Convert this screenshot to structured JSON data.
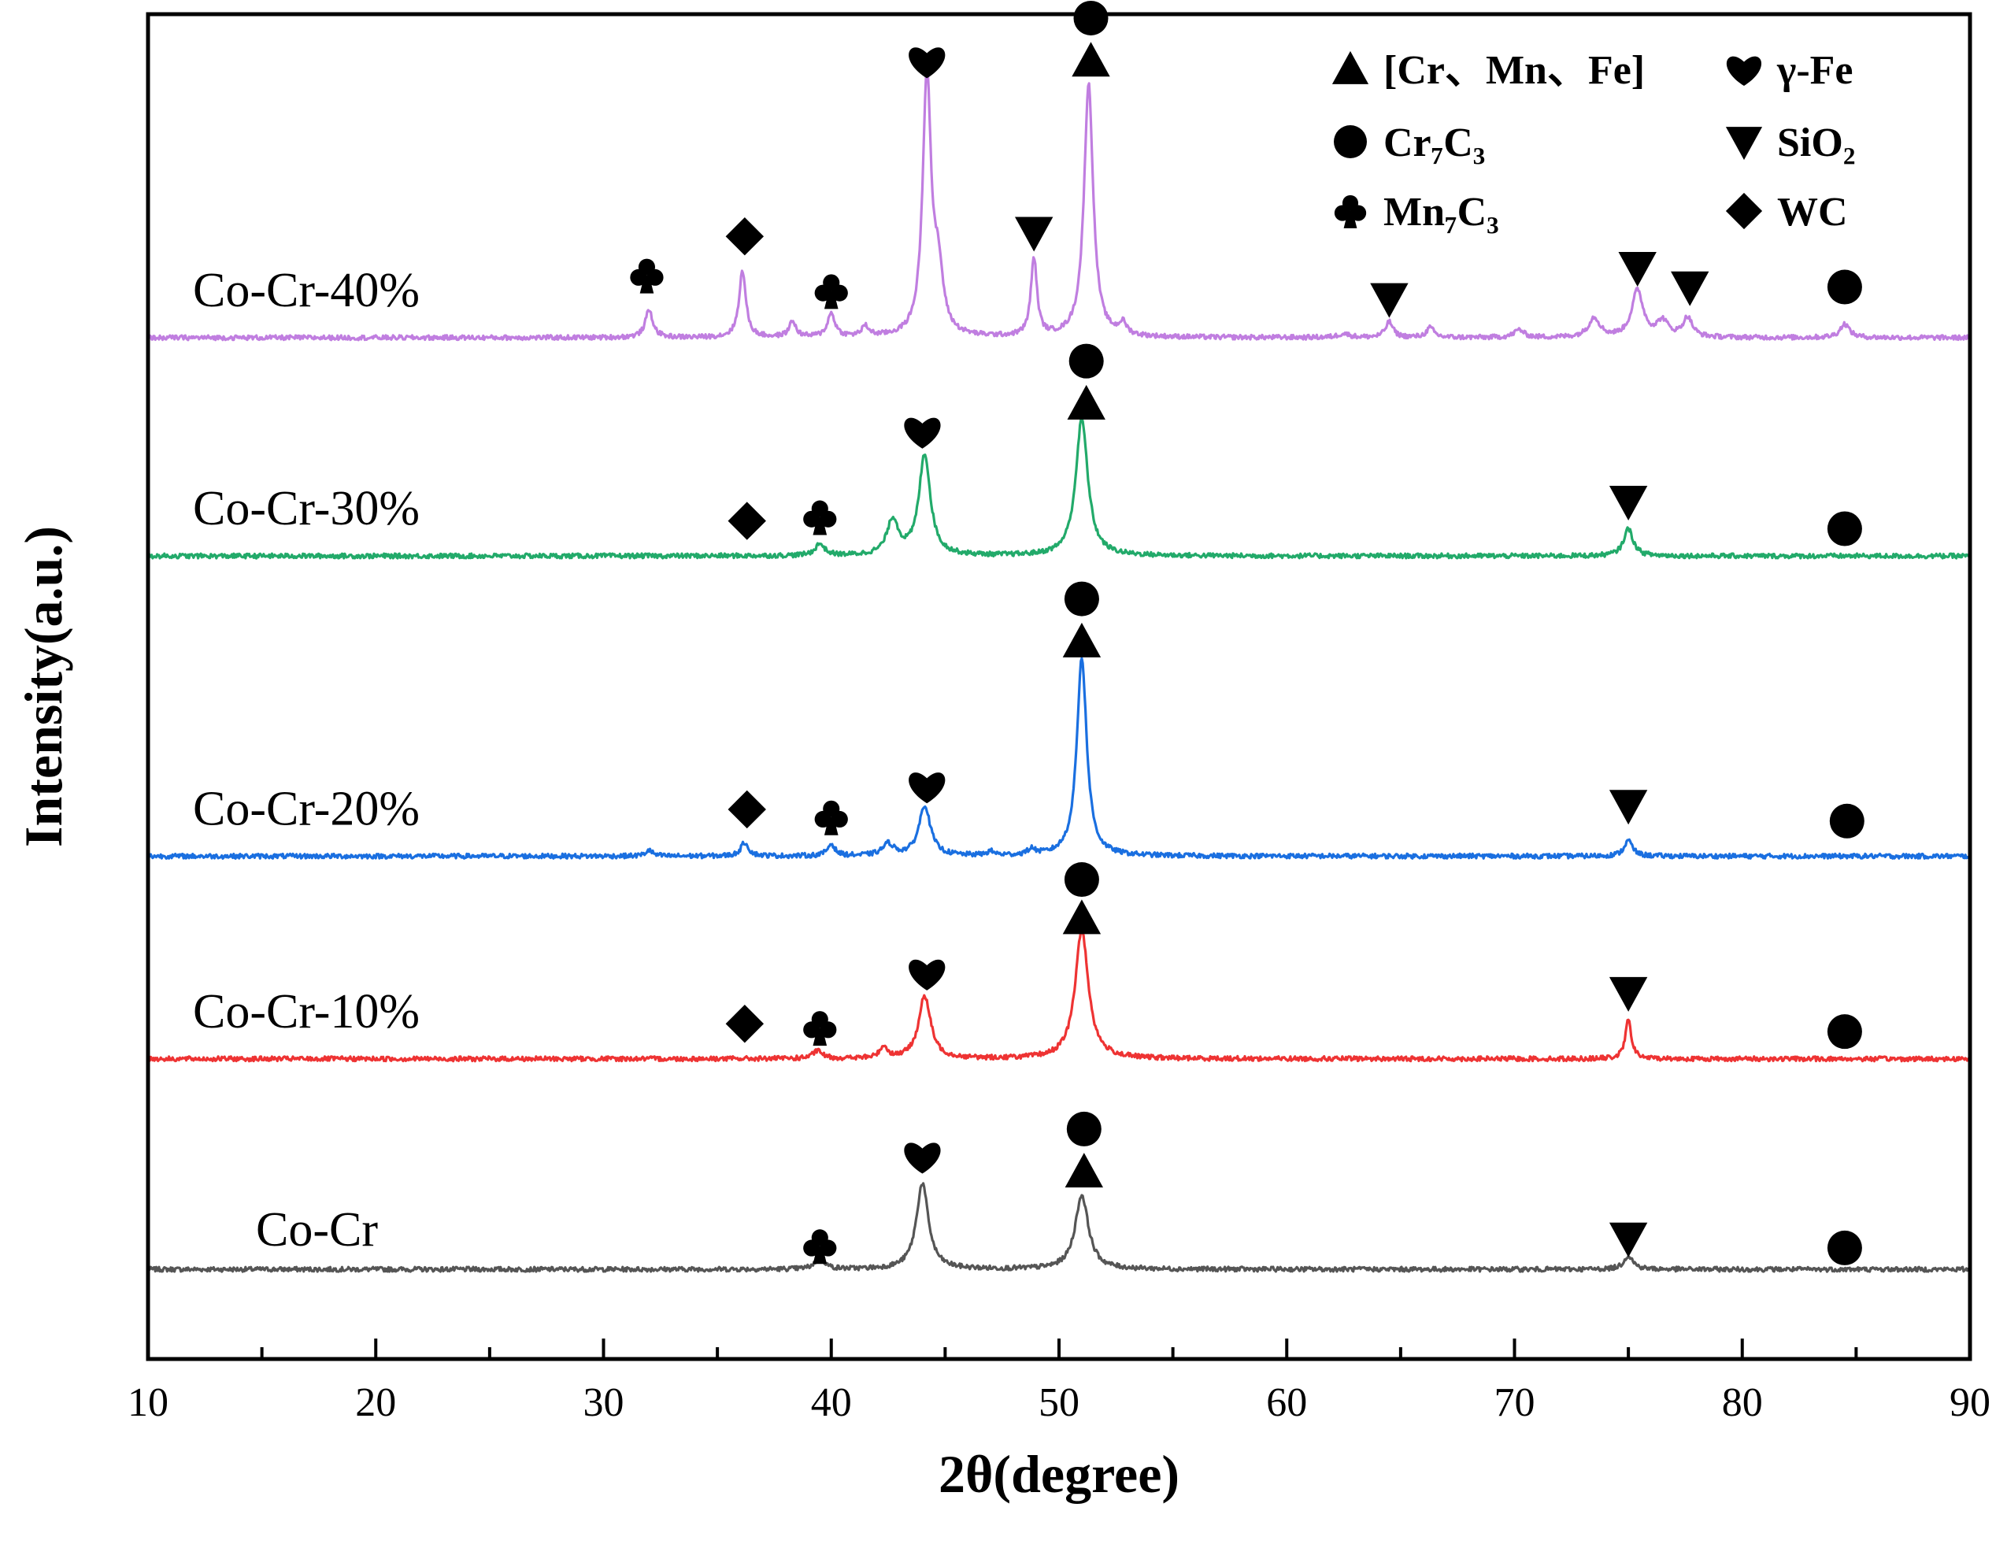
{
  "chart_data": {
    "type": "line",
    "title": "",
    "xlabel": "2θ(degree)",
    "ylabel": "Intensity(a.u.)",
    "xlim": [
      10,
      90
    ],
    "xticks": [
      10,
      20,
      30,
      40,
      50,
      60,
      70,
      80,
      90
    ],
    "xtick_labels": [
      "10",
      "20",
      "30",
      "40",
      "50",
      "60",
      "70",
      "80",
      "90"
    ],
    "grid": false,
    "legend_position": "top-right",
    "colors": {
      "Co-Cr": "#555555",
      "Co-Cr-10%": "#ee3333",
      "Co-Cr-20%": "#1a6fe0",
      "Co-Cr-30%": "#22aa6a",
      "Co-Cr-40%": "#c07ee0"
    },
    "phases": [
      {
        "key": "cmf",
        "symbol": "triangle-up",
        "label": "[Cr、Mn、Fe]"
      },
      {
        "key": "gfe",
        "symbol": "heart",
        "label": "γ-Fe"
      },
      {
        "key": "cr7c3",
        "symbol": "circle",
        "label": "Cr₇C₃"
      },
      {
        "key": "sio2",
        "symbol": "triangle-down",
        "label": "SiO₂"
      },
      {
        "key": "mn7c3",
        "symbol": "club",
        "label": "Mn₇C₃"
      },
      {
        "key": "wc",
        "symbol": "diamond",
        "label": "WC"
      }
    ],
    "series": [
      {
        "name": "Co-Cr",
        "baseline": 0,
        "peaks": [
          [
            39.5,
            0.3,
            0.25
          ],
          [
            44,
            2.2,
            0.32
          ],
          [
            51,
            1.9,
            0.35
          ],
          [
            75,
            0.35,
            0.25
          ]
        ],
        "markers": [
          {
            "phase": "mn7c3",
            "x": 39.5,
            "level": 0.6
          },
          {
            "phase": "gfe",
            "x": 44,
            "level": 2.9
          },
          {
            "phase": "cmf",
            "x": 51.1,
            "level": 2.5
          },
          {
            "phase": "cr7c3",
            "x": 51.1,
            "level": 3.6
          },
          {
            "phase": "sio2",
            "x": 75,
            "level": 0.8
          },
          {
            "phase": "cr7c3",
            "x": 84.5,
            "level": 0.55
          }
        ]
      },
      {
        "name": "Co-Cr-10%",
        "baseline": 5.4,
        "peaks": [
          [
            39.4,
            0.2,
            0.25
          ],
          [
            42.3,
            0.3,
            0.2
          ],
          [
            44.1,
            1.6,
            0.32
          ],
          [
            51,
            3.3,
            0.35
          ],
          [
            75,
            1.0,
            0.16
          ]
        ],
        "markers": [
          {
            "phase": "wc",
            "x": 36.2,
            "level": 0.9
          },
          {
            "phase": "mn7c3",
            "x": 39.5,
            "level": 0.8
          },
          {
            "phase": "gfe",
            "x": 44.2,
            "level": 2.2
          },
          {
            "phase": "cmf",
            "x": 51,
            "level": 3.6
          },
          {
            "phase": "cr7c3",
            "x": 51,
            "level": 4.6
          },
          {
            "phase": "sio2",
            "x": 75,
            "level": 1.7
          },
          {
            "phase": "cr7c3",
            "x": 84.5,
            "level": 0.7
          }
        ]
      },
      {
        "name": "Co-Cr-20%",
        "baseline": 10.6,
        "peaks": [
          [
            32,
            0.15,
            0.18
          ],
          [
            36.2,
            0.35,
            0.2
          ],
          [
            40,
            0.3,
            0.2
          ],
          [
            42.5,
            0.3,
            0.3
          ],
          [
            44.1,
            1.3,
            0.3
          ],
          [
            47,
            0.1,
            0.2
          ],
          [
            48.8,
            0.15,
            0.2
          ],
          [
            51,
            5.1,
            0.26
          ],
          [
            75,
            0.4,
            0.22
          ]
        ],
        "markers": [
          {
            "phase": "wc",
            "x": 36.3,
            "level": 1.2
          },
          {
            "phase": "mn7c3",
            "x": 40,
            "level": 1.0
          },
          {
            "phase": "gfe",
            "x": 44.2,
            "level": 1.8
          },
          {
            "phase": "cmf",
            "x": 51,
            "level": 5.5
          },
          {
            "phase": "cr7c3",
            "x": 51,
            "level": 6.6
          },
          {
            "phase": "sio2",
            "x": 75,
            "level": 1.3
          },
          {
            "phase": "cr7c3",
            "x": 84.6,
            "level": 0.9
          }
        ]
      },
      {
        "name": "Co-Cr-30%",
        "baseline": 18.3,
        "peaks": [
          [
            39.5,
            0.3,
            0.25
          ],
          [
            42.7,
            0.9,
            0.3
          ],
          [
            44.1,
            2.6,
            0.3
          ],
          [
            51,
            3.5,
            0.32
          ],
          [
            75,
            0.7,
            0.25
          ]
        ],
        "markers": [
          {
            "phase": "wc",
            "x": 36.3,
            "level": 0.9
          },
          {
            "phase": "mn7c3",
            "x": 39.5,
            "level": 1.0
          },
          {
            "phase": "gfe",
            "x": 44,
            "level": 3.2
          },
          {
            "phase": "cmf",
            "x": 51.2,
            "level": 3.9
          },
          {
            "phase": "cr7c3",
            "x": 51.2,
            "level": 5.0
          },
          {
            "phase": "sio2",
            "x": 75,
            "level": 1.4
          },
          {
            "phase": "cr7c3",
            "x": 84.5,
            "level": 0.7
          }
        ]
      },
      {
        "name": "Co-Cr-40%",
        "baseline": 23.9,
        "peaks": [
          [
            32,
            0.7,
            0.2
          ],
          [
            36.1,
            1.7,
            0.18
          ],
          [
            38.3,
            0.4,
            0.18
          ],
          [
            40,
            0.6,
            0.2
          ],
          [
            41.5,
            0.25,
            0.2
          ],
          [
            44.2,
            6.7,
            0.22
          ],
          [
            44.7,
            1.5,
            0.25
          ],
          [
            48.9,
            2.0,
            0.16
          ],
          [
            51.3,
            6.5,
            0.24
          ],
          [
            52.8,
            0.3,
            0.2
          ],
          [
            62.5,
            0.1,
            0.3
          ],
          [
            64.5,
            0.4,
            0.2
          ],
          [
            66.3,
            0.25,
            0.2
          ],
          [
            70.2,
            0.2,
            0.25
          ],
          [
            73.5,
            0.5,
            0.3
          ],
          [
            75.4,
            1.2,
            0.3
          ],
          [
            76.5,
            0.4,
            0.3
          ],
          [
            77.6,
            0.5,
            0.25
          ],
          [
            84.5,
            0.35,
            0.25
          ]
        ],
        "markers": [
          {
            "phase": "mn7c3",
            "x": 31.9,
            "level": 1.6
          },
          {
            "phase": "wc",
            "x": 36.2,
            "level": 2.6
          },
          {
            "phase": "mn7c3",
            "x": 40,
            "level": 1.2
          },
          {
            "phase": "gfe",
            "x": 44.2,
            "level": 7.1
          },
          {
            "phase": "sio2",
            "x": 48.9,
            "level": 2.7
          },
          {
            "phase": "cmf",
            "x": 51.4,
            "level": 7.1
          },
          {
            "phase": "cr7c3",
            "x": 51.4,
            "level": 8.2
          },
          {
            "phase": "sio2",
            "x": 64.5,
            "level": 1.0
          },
          {
            "phase": "sio2",
            "x": 75.4,
            "level": 1.8
          },
          {
            "phase": "sio2",
            "x": 77.7,
            "level": 1.3
          },
          {
            "phase": "cr7c3",
            "x": 84.5,
            "level": 1.3
          }
        ]
      }
    ]
  }
}
